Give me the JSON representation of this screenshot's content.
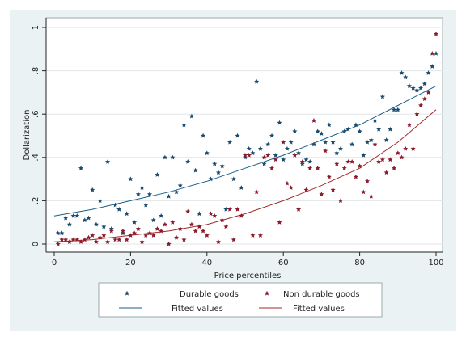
{
  "chart_data": {
    "type": "scatter",
    "xlabel": "Price percentiles",
    "ylabel": "Dollarization",
    "xlim": [
      0,
      100
    ],
    "ylim": [
      0,
      1
    ],
    "x_ticks": [
      0,
      20,
      40,
      60,
      80,
      100
    ],
    "y_ticks": [
      0,
      0.2,
      0.4,
      0.6,
      0.8,
      1
    ],
    "y_tick_labels": [
      "0",
      ".2",
      ".4",
      ".6",
      ".8",
      "1"
    ],
    "grid": "horizontal",
    "legend_position": "bottom",
    "colors": {
      "durable": "#1a4a6e",
      "nondurable": "#8b1a2b",
      "fit_durable": "#1a5f8a",
      "fit_nondurable": "#a32a2a"
    },
    "series": [
      {
        "name": "Durable goods",
        "kind": "points",
        "x": [
          1,
          2,
          3,
          4,
          5,
          6,
          7,
          8,
          9,
          10,
          11,
          12,
          13,
          14,
          15,
          16,
          17,
          18,
          19,
          20,
          21,
          22,
          23,
          24,
          25,
          26,
          27,
          28,
          29,
          30,
          31,
          32,
          33,
          34,
          35,
          36,
          37,
          38,
          39,
          40,
          41,
          42,
          43,
          44,
          45,
          46,
          47,
          48,
          49,
          50,
          51,
          52,
          53,
          54,
          55,
          56,
          57,
          58,
          59,
          60,
          61,
          62,
          63,
          64,
          65,
          66,
          67,
          68,
          69,
          70,
          71,
          72,
          73,
          74,
          75,
          76,
          77,
          78,
          79,
          80,
          81,
          82,
          83,
          84,
          85,
          86,
          87,
          88,
          89,
          90,
          91,
          92,
          93,
          94,
          95,
          96,
          97,
          98,
          99,
          100
        ],
        "y": [
          0.05,
          0.05,
          0.12,
          0.09,
          0.13,
          0.13,
          0.35,
          0.11,
          0.12,
          0.25,
          0.09,
          0.2,
          0.08,
          0.38,
          0.07,
          0.18,
          0.16,
          0.05,
          0.14,
          0.3,
          0.1,
          0.23,
          0.26,
          0.18,
          0.23,
          0.11,
          0.32,
          0.13,
          0.4,
          0.22,
          0.4,
          0.24,
          0.27,
          0.55,
          0.38,
          0.59,
          0.34,
          0.14,
          0.5,
          0.42,
          0.3,
          0.37,
          0.33,
          0.36,
          0.16,
          0.47,
          0.3,
          0.5,
          0.26,
          0.4,
          0.44,
          0.42,
          0.75,
          0.44,
          0.37,
          0.46,
          0.5,
          0.41,
          0.56,
          0.39,
          0.44,
          0.47,
          0.52,
          0.42,
          0.37,
          0.39,
          0.38,
          0.46,
          0.52,
          0.51,
          0.47,
          0.55,
          0.47,
          0.42,
          0.44,
          0.52,
          0.53,
          0.46,
          0.55,
          0.52,
          0.41,
          0.47,
          0.48,
          0.57,
          0.53,
          0.68,
          0.48,
          0.53,
          0.62,
          0.62,
          0.79,
          0.77,
          0.73,
          0.72,
          0.71,
          0.72,
          0.74,
          0.79,
          0.82,
          0.88
        ]
      },
      {
        "name": "Non durable goods",
        "kind": "points",
        "x": [
          1,
          2,
          3,
          4,
          5,
          6,
          7,
          8,
          9,
          10,
          11,
          12,
          13,
          14,
          15,
          16,
          17,
          18,
          19,
          20,
          21,
          22,
          23,
          24,
          25,
          26,
          27,
          28,
          29,
          30,
          31,
          32,
          33,
          34,
          35,
          36,
          37,
          38,
          39,
          40,
          41,
          42,
          43,
          44,
          45,
          46,
          47,
          48,
          49,
          50,
          51,
          52,
          53,
          54,
          55,
          56,
          57,
          58,
          59,
          60,
          61,
          62,
          63,
          64,
          65,
          66,
          67,
          68,
          69,
          70,
          71,
          72,
          73,
          74,
          75,
          76,
          77,
          78,
          79,
          80,
          81,
          82,
          83,
          84,
          85,
          86,
          87,
          88,
          89,
          90,
          91,
          92,
          93,
          94,
          95,
          96,
          97,
          98,
          99,
          100
        ],
        "y": [
          0.0,
          0.02,
          0.02,
          0.01,
          0.02,
          0.02,
          0.01,
          0.02,
          0.03,
          0.04,
          0.01,
          0.03,
          0.04,
          0.01,
          0.06,
          0.02,
          0.02,
          0.06,
          0.02,
          0.04,
          0.05,
          0.07,
          0.01,
          0.04,
          0.05,
          0.04,
          0.07,
          0.06,
          0.09,
          0.0,
          0.1,
          0.03,
          0.07,
          0.02,
          0.15,
          0.09,
          0.06,
          0.08,
          0.06,
          0.04,
          0.14,
          0.13,
          0.01,
          0.11,
          0.08,
          0.16,
          0.02,
          0.16,
          0.13,
          0.41,
          0.41,
          0.04,
          0.24,
          0.04,
          0.4,
          0.41,
          0.35,
          0.39,
          0.1,
          0.47,
          0.28,
          0.26,
          0.41,
          0.16,
          0.38,
          0.25,
          0.35,
          0.57,
          0.35,
          0.23,
          0.43,
          0.31,
          0.25,
          0.37,
          0.2,
          0.35,
          0.38,
          0.38,
          0.31,
          0.36,
          0.24,
          0.29,
          0.22,
          0.46,
          0.38,
          0.39,
          0.33,
          0.39,
          0.35,
          0.42,
          0.4,
          0.44,
          0.55,
          0.44,
          0.6,
          0.64,
          0.67,
          0.7,
          0.88,
          0.97
        ]
      },
      {
        "name": "Fitted values",
        "kind": "line",
        "x": [
          0,
          10,
          20,
          30,
          40,
          50,
          60,
          70,
          80,
          90,
          100
        ],
        "y": [
          0.13,
          0.16,
          0.2,
          0.24,
          0.29,
          0.35,
          0.41,
          0.48,
          0.55,
          0.64,
          0.73
        ]
      },
      {
        "name": "Fitted values",
        "kind": "line",
        "x": [
          0,
          10,
          20,
          30,
          40,
          50,
          60,
          70,
          80,
          90,
          100
        ],
        "y": [
          0.01,
          0.02,
          0.04,
          0.06,
          0.09,
          0.14,
          0.2,
          0.27,
          0.35,
          0.47,
          0.62
        ]
      }
    ]
  }
}
